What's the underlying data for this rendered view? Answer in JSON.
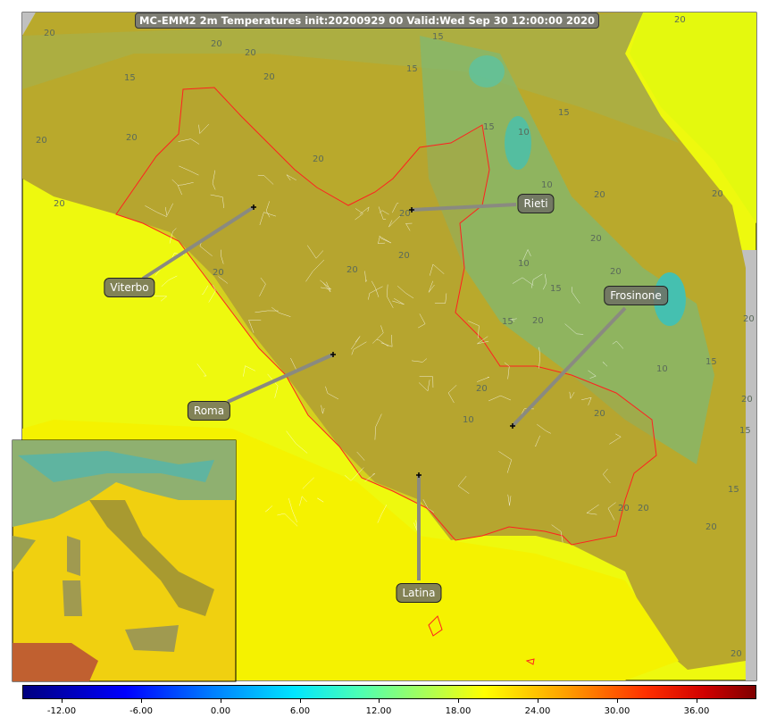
{
  "title": "MC-EMM2 2m Temperatures init:20200929 00  Valid:Wed Sep 30 12:00:00 2020",
  "colors": {
    "sea": "#eef90e",
    "land": "#b9a92c",
    "highland": "#8fb45a",
    "cold": "#5cc8a0",
    "region_border": "#ff2020",
    "municipal_border": "#ffffff"
  },
  "cities": [
    {
      "name": "Viterbo"
    },
    {
      "name": "Rieti"
    },
    {
      "name": "Frosinone"
    },
    {
      "name": "Roma"
    },
    {
      "name": "Latina"
    }
  ],
  "contour_labels": [
    "20",
    "20",
    "20",
    "20",
    "15",
    "15",
    "15",
    "20",
    "20",
    "20",
    "20",
    "15",
    "10",
    "10",
    "15",
    "20",
    "20",
    "20",
    "20",
    "20",
    "10",
    "15",
    "20",
    "15",
    "10",
    "20",
    "20",
    "15",
    "15",
    "10",
    "20",
    "20",
    "20",
    "20",
    "20",
    "15",
    "20",
    "20",
    "20",
    "20",
    "20"
  ],
  "colorbar": {
    "colormap": "jet",
    "ticks": [
      "-12.00",
      "-6.00",
      "0.00",
      "6.00",
      "12.00",
      "18.00",
      "24.00",
      "30.00",
      "36.00"
    ],
    "range": [
      -15,
      40.5
    ]
  },
  "inset": {
    "region": "Italy overview"
  }
}
